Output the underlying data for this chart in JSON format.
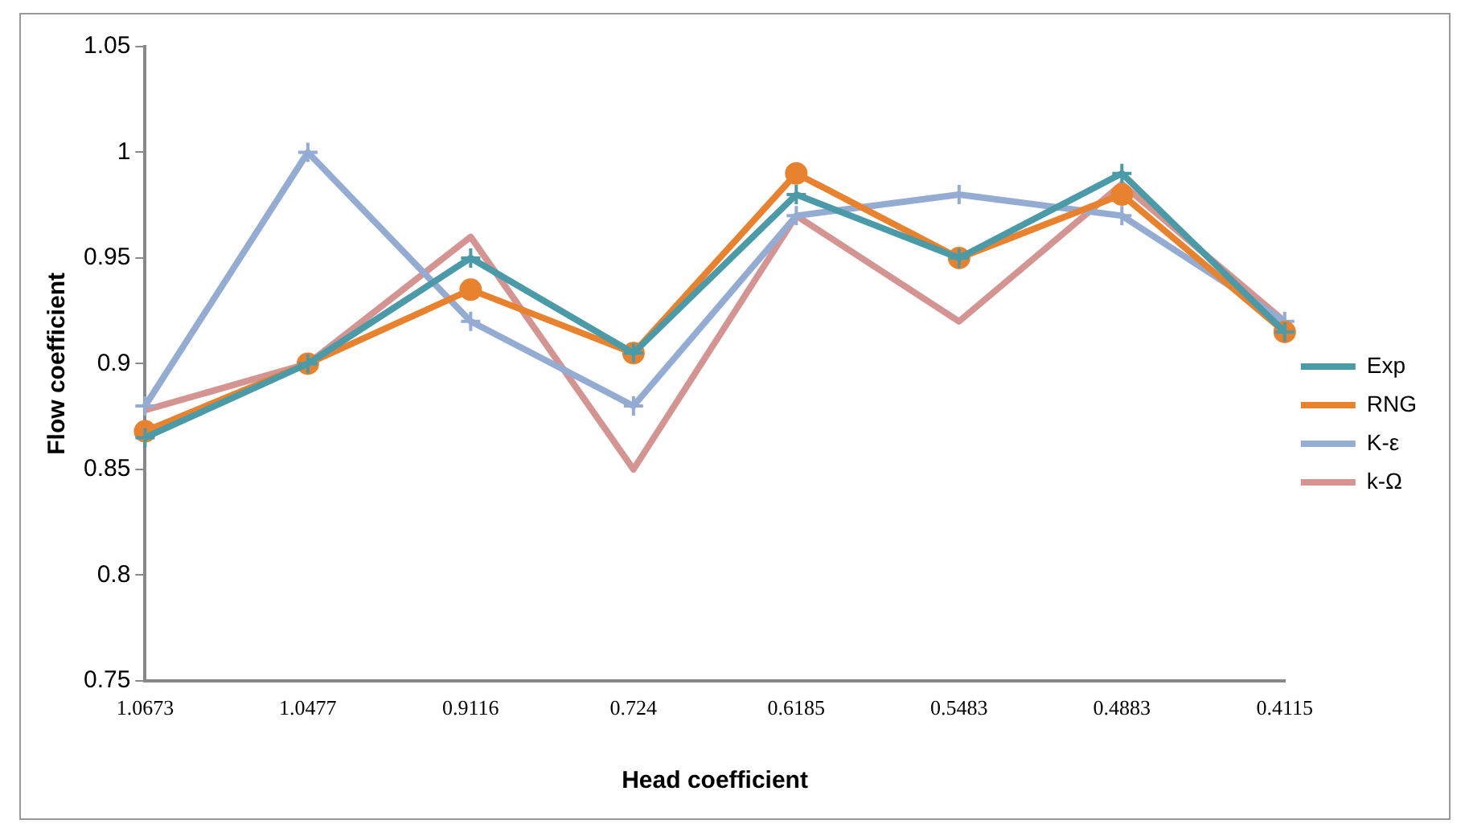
{
  "chart_data": {
    "type": "line",
    "xlabel": "Head coefficient",
    "ylabel": "Flow coefficient",
    "categories": [
      "1.0673",
      "1.0477",
      "0.9116",
      "0.724",
      "0.6185",
      "0.5483",
      "0.4883",
      "0.4115"
    ],
    "series": [
      {
        "name": "Exp",
        "color": "#4a9aa8",
        "marker": "cross",
        "values": [
          0.865,
          0.9,
          0.95,
          0.905,
          0.98,
          0.95,
          0.99,
          0.915
        ]
      },
      {
        "name": "RNG",
        "color": "#e8822e",
        "marker": "circle",
        "values": [
          0.868,
          0.9,
          0.935,
          0.905,
          0.99,
          0.95,
          0.98,
          0.915
        ]
      },
      {
        "name": "K-ε",
        "color": "#94acd2",
        "marker": "cross",
        "values": [
          0.88,
          1.0,
          0.92,
          0.88,
          0.97,
          0.98,
          0.97,
          0.92
        ]
      },
      {
        "name": "k-Ω",
        "color": "#d49592",
        "marker": "none",
        "values": [
          0.878,
          0.9,
          0.96,
          0.85,
          0.97,
          0.92,
          0.985,
          0.92
        ]
      }
    ],
    "ylim": [
      0.75,
      1.05
    ],
    "yticks": [
      0.75,
      0.8,
      0.85,
      0.9,
      0.95,
      1,
      1.05
    ],
    "grid": false,
    "legend": "right"
  }
}
